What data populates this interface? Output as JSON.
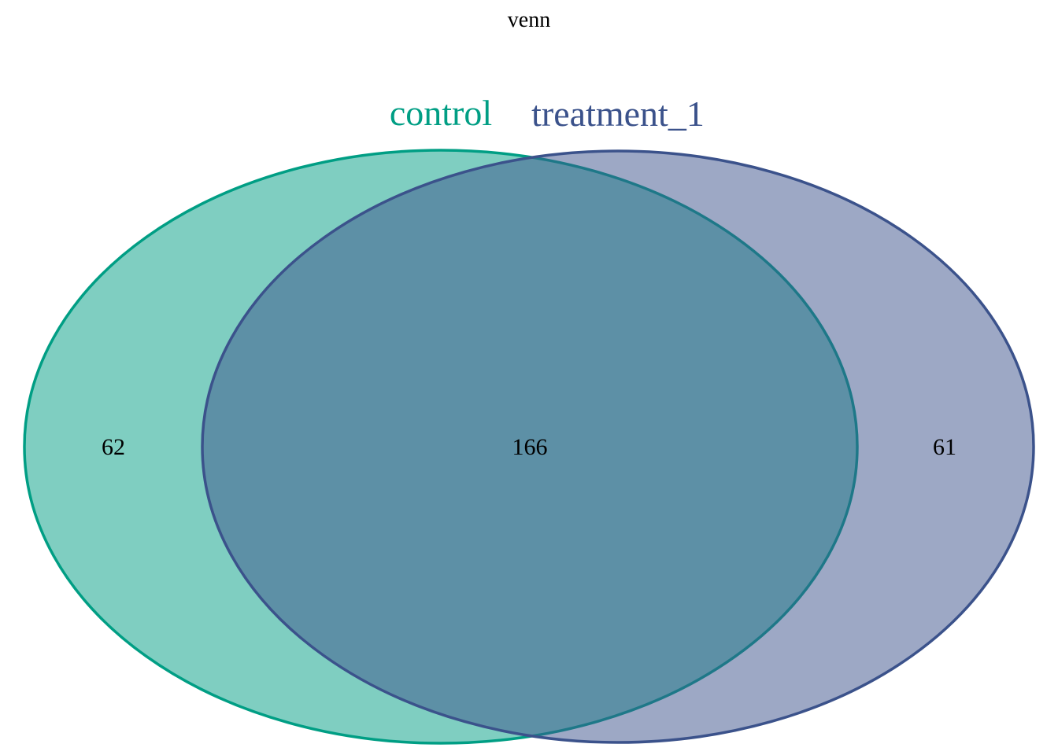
{
  "title": "venn",
  "sets": [
    {
      "name": "control",
      "color": "#009E84"
    },
    {
      "name": "treatment_1",
      "color": "#3B528B"
    }
  ],
  "regions": {
    "control_only": "62",
    "intersection": "166",
    "treatment_1_only": "61"
  },
  "style": {
    "fill_opacity": 0.5,
    "label_color": "#000000"
  }
}
